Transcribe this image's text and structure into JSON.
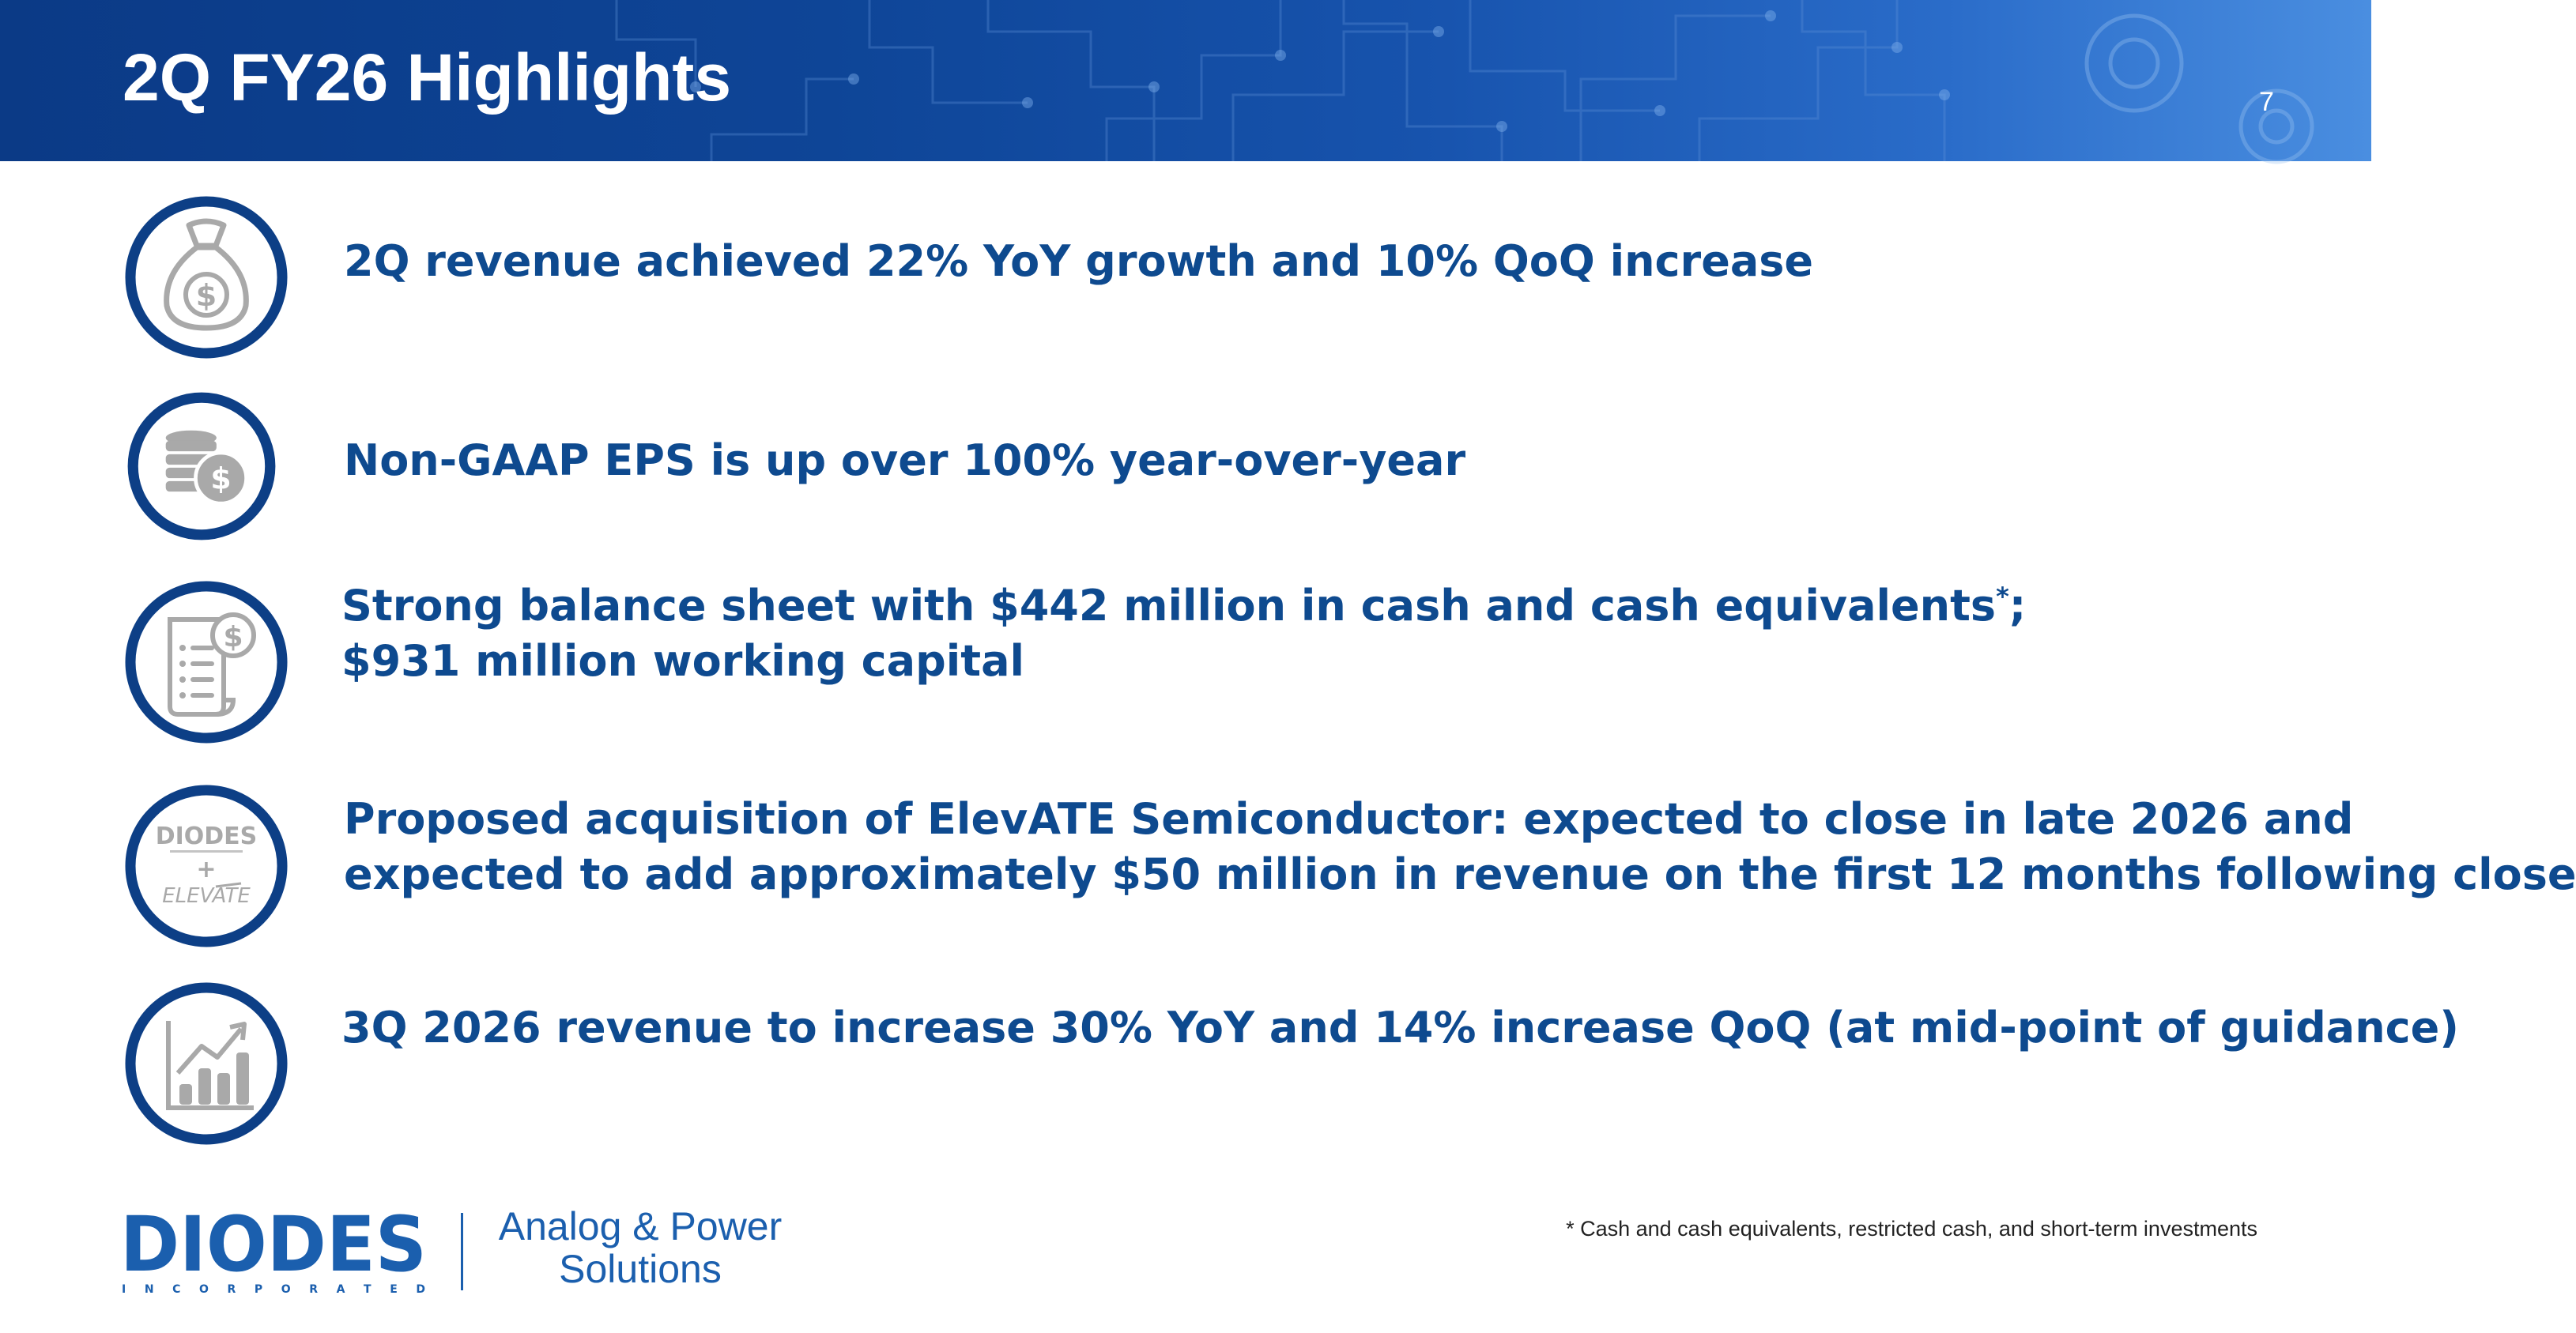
{
  "slide": {
    "title": "2Q FY26 Highlights",
    "page_number": "7"
  },
  "highlights": [
    {
      "icon": "money-bag-icon",
      "lines": [
        "2Q revenue achieved 22% YoY growth and 10% QoQ increase"
      ]
    },
    {
      "icon": "coin-stack-icon",
      "lines": [
        "Non-GAAP EPS is up over 100% year-over-year"
      ]
    },
    {
      "icon": "invoice-icon",
      "line1": "Strong balance sheet with $442 million in cash and cash equivalents",
      "line1_mark": "*",
      "line1_end": ";",
      "line2": "$931 million working capital"
    },
    {
      "icon": "diodes-elevate-logos-icon",
      "lines": [
        "Proposed acquisition of ElevATE Semiconductor: expected to close in late 2026 and",
        "expected to add approximately $50 million in revenue on the first 12 months following close"
      ]
    },
    {
      "icon": "bar-chart-growth-icon",
      "lines": [
        "3Q 2026 revenue to increase 30% YoY and 14% increase QoQ (at mid-point of guidance)"
      ]
    }
  ],
  "acquisition_icon": {
    "logo_top": "DIODES",
    "plus": "+",
    "logo_bottom": "ELEVATE"
  },
  "footer": {
    "logo_text": "DIODES",
    "logo_subtext": "I N C O R P O R A T E D",
    "tagline_line1": "Analog & Power",
    "tagline_line2": "Solutions",
    "footnote": "* Cash and cash equivalents, restricted cash, and short-term investments"
  },
  "colors": {
    "brand_blue": "#0e4a8f",
    "icon_ring": "#0d3f86",
    "icon_gray": "#a9a9a9",
    "header_dark": "#0b3a86",
    "header_light": "#4a8ee0"
  }
}
